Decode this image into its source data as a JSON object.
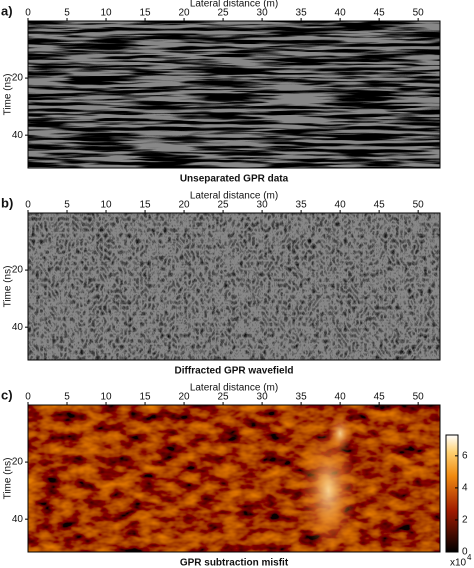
{
  "chart_data": [
    {
      "type": "image",
      "panel_label": "a)",
      "title": "Unseparated GPR data",
      "xlabel": "Lateral distance (m)",
      "ylabel": "Time (ns)",
      "xlim": [
        0,
        52.8
      ],
      "xticks": [
        0,
        5,
        10,
        15,
        20,
        25,
        30,
        35,
        40,
        45,
        50
      ],
      "ylim": [
        0,
        51.5
      ],
      "yticks": [
        20,
        40
      ],
      "y_inverted": true,
      "colormap": "gray"
    },
    {
      "type": "image",
      "panel_label": "b)",
      "title": "Diffracted GPR wavefield",
      "xlabel": "Lateral distance (m)",
      "ylabel": "Time (ns)",
      "xlim": [
        0,
        52.8
      ],
      "xticks": [
        0,
        5,
        10,
        15,
        20,
        25,
        30,
        35,
        40,
        45,
        50
      ],
      "ylim": [
        0,
        51.5
      ],
      "yticks": [
        20,
        40
      ],
      "y_inverted": true,
      "colormap": "gray"
    },
    {
      "type": "image",
      "panel_label": "c)",
      "title": "GPR subtraction misfit",
      "xlabel": "Lateral distance (m)",
      "ylabel": "Time (ns)",
      "xlim": [
        0,
        52.8
      ],
      "xticks": [
        0,
        5,
        10,
        15,
        20,
        25,
        30,
        35,
        40,
        45,
        50
      ],
      "ylim": [
        0,
        51.5
      ],
      "yticks": [
        20,
        40
      ],
      "y_inverted": true,
      "colormap": "hot",
      "colorbar": {
        "lim": [
          0,
          7.3
        ],
        "ticks": [
          0,
          2,
          4,
          6
        ],
        "multiplier": "x10",
        "exponent": "4"
      }
    }
  ]
}
